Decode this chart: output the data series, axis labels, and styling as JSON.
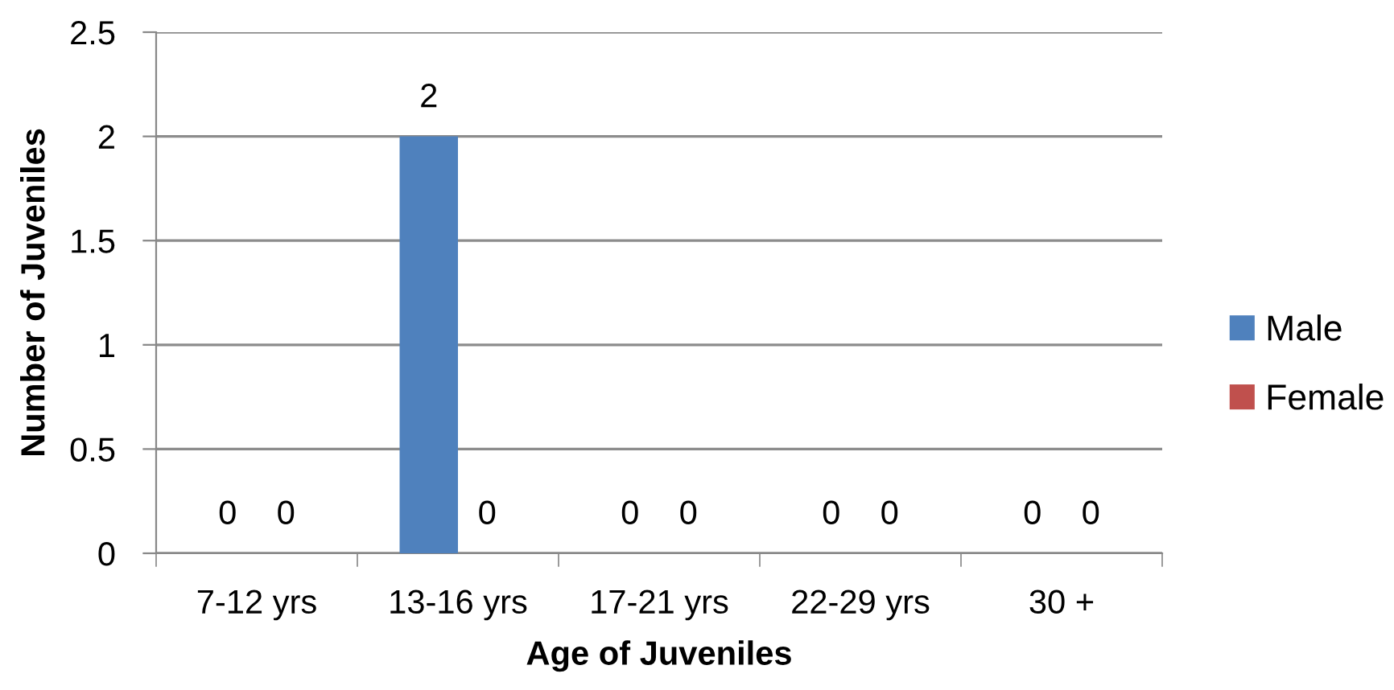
{
  "chart_data": {
    "type": "bar",
    "xlabel": "Age of Juveniles",
    "ylabel": "Number of Juveniles",
    "categories": [
      "7-12 yrs",
      "13-16 yrs",
      "17-21 yrs",
      "22-29 yrs",
      "30 +"
    ],
    "series": [
      {
        "name": "Male",
        "color": "#4f81bd",
        "values": [
          0,
          2,
          0,
          0,
          0
        ]
      },
      {
        "name": "Female",
        "color": "#c0504d",
        "values": [
          0,
          0,
          0,
          0,
          0
        ]
      }
    ],
    "ylim": [
      0,
      2.5
    ],
    "yticks": [
      0,
      0.5,
      1,
      1.5,
      2,
      2.5
    ],
    "grid": "y",
    "legend": "right",
    "data_labels": true
  }
}
